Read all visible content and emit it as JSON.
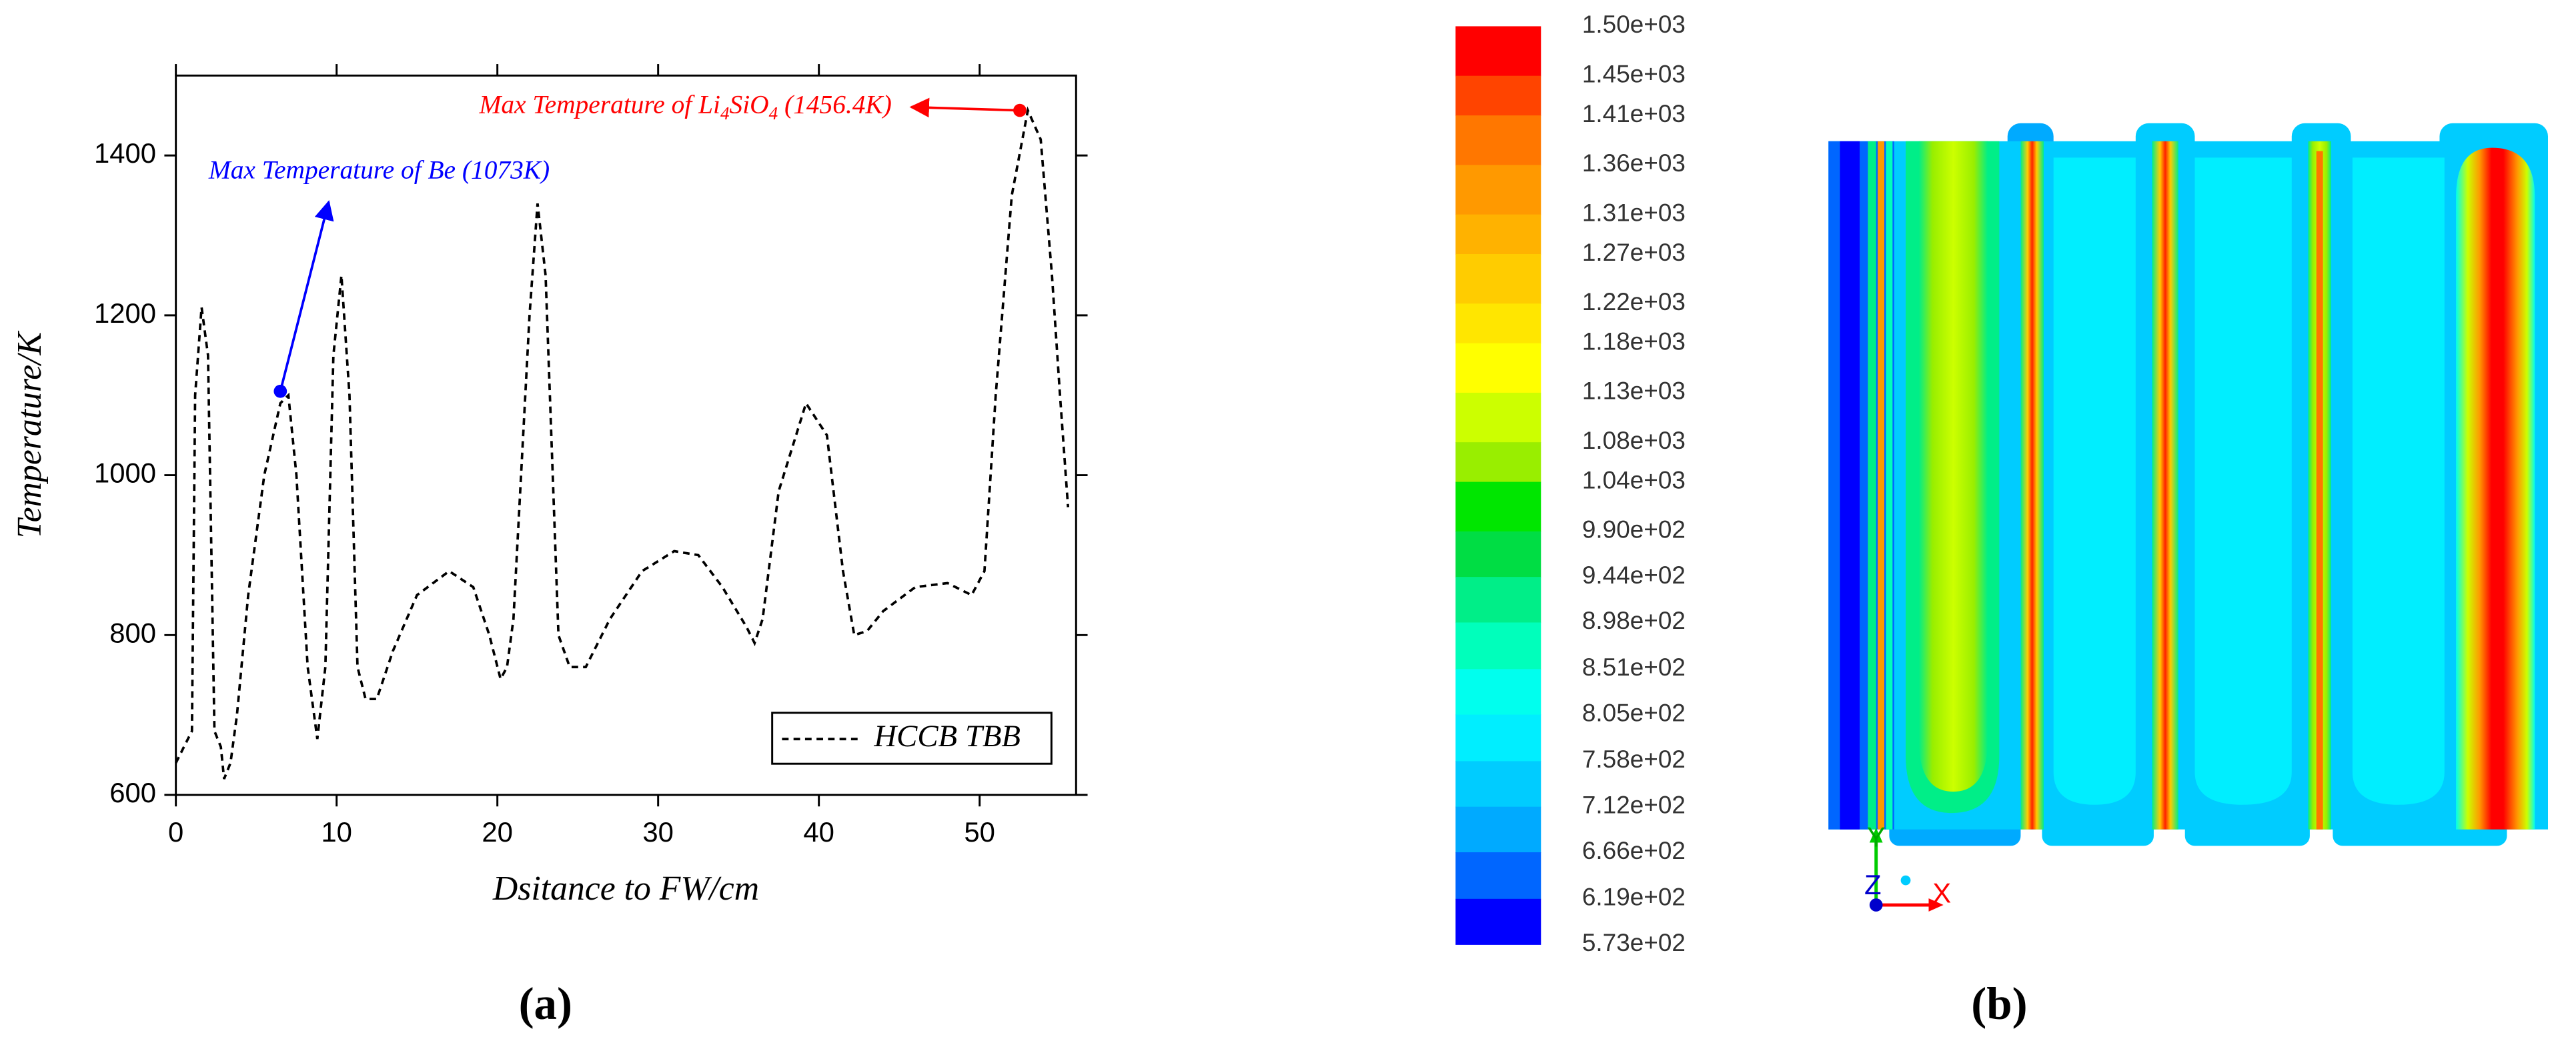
{
  "chart_data": [
    {
      "type": "line",
      "panel_label": "(a)",
      "x_label": "Dsitance to FW/cm",
      "y_label": "Temperature/K",
      "xlim": [
        0,
        56
      ],
      "ylim": [
        600,
        1500
      ],
      "xticks": [
        0,
        10,
        20,
        30,
        40,
        50
      ],
      "yticks": [
        600,
        800,
        1000,
        1200,
        1400
      ],
      "grid": false,
      "legend": "lower right",
      "x": [
        0,
        0.5,
        1.0,
        1.2,
        1.6,
        2.0,
        2.4,
        2.8,
        3.0,
        3.4,
        3.8,
        4.5,
        5.5,
        6.5,
        7.0,
        7.5,
        8.2,
        8.8,
        9.3,
        9.8,
        10.3,
        10.8,
        11.3,
        11.8,
        12.5,
        13.5,
        15,
        17,
        18.5,
        19.5,
        20.2,
        20.6,
        21,
        22,
        22.5,
        23,
        23.8,
        24.5,
        25.5,
        27,
        29,
        31,
        32.5,
        34,
        35.5,
        36,
        36.5,
        37.5,
        39.2,
        40.5,
        41.5,
        42.2,
        43,
        44,
        46,
        48,
        49.5,
        50.3,
        51,
        52,
        53,
        53.8,
        54.5,
        55,
        55.5
      ],
      "series": [
        {
          "name": "HCCB TBB",
          "color": "#000000",
          "line_style": "dashed",
          "values": [
            640,
            660,
            680,
            1100,
            1210,
            1150,
            680,
            660,
            620,
            640,
            700,
            850,
            1000,
            1090,
            1100,
            1000,
            760,
            670,
            760,
            1150,
            1250,
            1100,
            760,
            720,
            720,
            780,
            850,
            880,
            860,
            800,
            745,
            760,
            820,
            1200,
            1340,
            1250,
            800,
            760,
            760,
            820,
            880,
            905,
            900,
            860,
            810,
            790,
            820,
            980,
            1090,
            1050,
            880,
            800,
            805,
            830,
            860,
            865,
            850,
            880,
            1100,
            1350,
            1456.4,
            1420,
            1250,
            1100,
            960
          ]
        }
      ],
      "annotations": [
        {
          "text_parts": [
            "Max Temperature of Li",
            "4",
            "SiO",
            "4",
            " (1456.4K)"
          ],
          "color": "#ff0000",
          "point": [
            52.5,
            1456.4
          ]
        },
        {
          "text_parts": [
            "Max Temperature of Be (1073K)"
          ],
          "color": "#0000ff",
          "point": [
            6.5,
            1105
          ]
        }
      ]
    },
    {
      "type": "contour",
      "panel_label": "(b)",
      "axes_labels": [
        "X",
        "Y",
        "Z"
      ],
      "levels": [
        {
          "value": 1500,
          "label": "1.50e+03"
        },
        {
          "value": 1450,
          "label": "1.45e+03"
        },
        {
          "value": 1410,
          "label": "1.41e+03"
        },
        {
          "value": 1360,
          "label": "1.36e+03"
        },
        {
          "value": 1310,
          "label": "1.31e+03"
        },
        {
          "value": 1270,
          "label": "1.27e+03"
        },
        {
          "value": 1220,
          "label": "1.22e+03"
        },
        {
          "value": 1180,
          "label": "1.18e+03"
        },
        {
          "value": 1130,
          "label": "1.13e+03"
        },
        {
          "value": 1080,
          "label": "1.08e+03"
        },
        {
          "value": 1040,
          "label": "1.04e+03"
        },
        {
          "value": 990,
          "label": "9.90e+02"
        },
        {
          "value": 944,
          "label": "9.44e+02"
        },
        {
          "value": 898,
          "label": "8.98e+02"
        },
        {
          "value": 851,
          "label": "8.51e+02"
        },
        {
          "value": 805,
          "label": "8.05e+02"
        },
        {
          "value": 758,
          "label": "7.58e+02"
        },
        {
          "value": 712,
          "label": "7.12e+02"
        },
        {
          "value": 666,
          "label": "6.66e+02"
        },
        {
          "value": 619,
          "label": "6.19e+02"
        },
        {
          "value": 573,
          "label": "5.73e+02"
        }
      ],
      "colors": [
        "#ff0000",
        "#ff4400",
        "#ff7700",
        "#ff9900",
        "#ffb200",
        "#ffcc00",
        "#ffe600",
        "#ffff00",
        "#ccff00",
        "#99ee00",
        "#00e600",
        "#00dd44",
        "#00ee88",
        "#00ffbb",
        "#00ffee",
        "#00eeff",
        "#00ccff",
        "#00aaff",
        "#0066ff",
        "#0000ff"
      ]
    }
  ]
}
